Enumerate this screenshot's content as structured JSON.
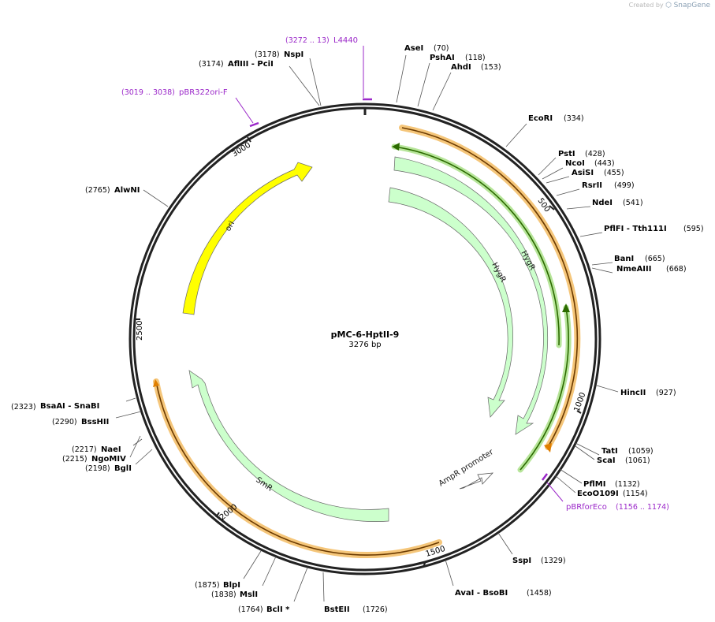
{
  "credit": {
    "prefix": "Created by",
    "brand": "SnapGene"
  },
  "plasmid": {
    "name": "pMC-6-HptII-9",
    "length_label": "3276 bp",
    "length": 3276
  },
  "enzymes": [
    {
      "name": "AseI",
      "pos": "(70)",
      "label_pos": "left"
    },
    {
      "name": "PshAI",
      "pos": "(118)"
    },
    {
      "name": "AhdI",
      "pos": "(153)"
    },
    {
      "name": "EcoRI",
      "pos": "(334)"
    },
    {
      "name": "PstI",
      "pos": "(428)"
    },
    {
      "name": "NcoI",
      "pos": "(443)"
    },
    {
      "name": "AsiSI",
      "pos": "(455)"
    },
    {
      "name": "RsrII",
      "pos": "(499)"
    },
    {
      "name": "NdeI",
      "pos": "(541)"
    },
    {
      "name": "PflFI - Tth111I",
      "pos": "(595)"
    },
    {
      "name": "BanI",
      "pos": "(665)"
    },
    {
      "name": "NmeAIII",
      "pos": "(668)"
    },
    {
      "name": "HincII",
      "pos": "(927)"
    },
    {
      "name": "TatI",
      "pos": "(1059)"
    },
    {
      "name": "ScaI",
      "pos": "(1061)"
    },
    {
      "name": "PflMI",
      "pos": "(1132)"
    },
    {
      "name": "EcoO109I",
      "pos": "(1154)"
    },
    {
      "name": "SspI",
      "pos": "(1329)"
    },
    {
      "name": "AvaI - BsoBI",
      "pos": "(1458)"
    },
    {
      "name": "BstEII",
      "pos": "(1726)"
    },
    {
      "name": "BclI *",
      "pos": "(1764)"
    },
    {
      "name": "MslI",
      "pos": "(1838)"
    },
    {
      "name": "BlpI",
      "pos": "(1875)"
    },
    {
      "name": "BglI",
      "pos": "(2198)"
    },
    {
      "name": "NgoMIV",
      "pos": "(2215)"
    },
    {
      "name": "NaeI",
      "pos": "(2217)"
    },
    {
      "name": "BssHII",
      "pos": "(2290)"
    },
    {
      "name": "BsaAI - SnaBI",
      "pos": "(2323)"
    },
    {
      "name": "AlwNI",
      "pos": "(2765)"
    },
    {
      "name": "AflIII - PciI",
      "pos": "(3174)"
    },
    {
      "name": "NspI",
      "pos": "(3178)"
    }
  ],
  "primers": [
    {
      "name": "L4440",
      "range": "(3272 .. 13)"
    },
    {
      "name": "pBR322ori-F",
      "range": "(3019 .. 3038)"
    },
    {
      "name": "pBRforEco",
      "range": "(1156 .. 1174)"
    }
  ],
  "ticks": [
    "500",
    "1000",
    "1500",
    "2000",
    "2500",
    "3000"
  ],
  "features": [
    {
      "name": "ori",
      "color": "#ffff00"
    },
    {
      "name": "HygR",
      "color": "#ccffcc"
    },
    {
      "name": "HygR",
      "color": "#ccffcc"
    },
    {
      "name": "SmR",
      "color": "#ccffcc"
    },
    {
      "name": "AmpR promoter",
      "color": "#ffffff"
    }
  ],
  "colors": {
    "backbone": "#222222",
    "primer": "#9b28c9",
    "orange_band": "#e8a33a",
    "green_band": "#4aa01a"
  }
}
